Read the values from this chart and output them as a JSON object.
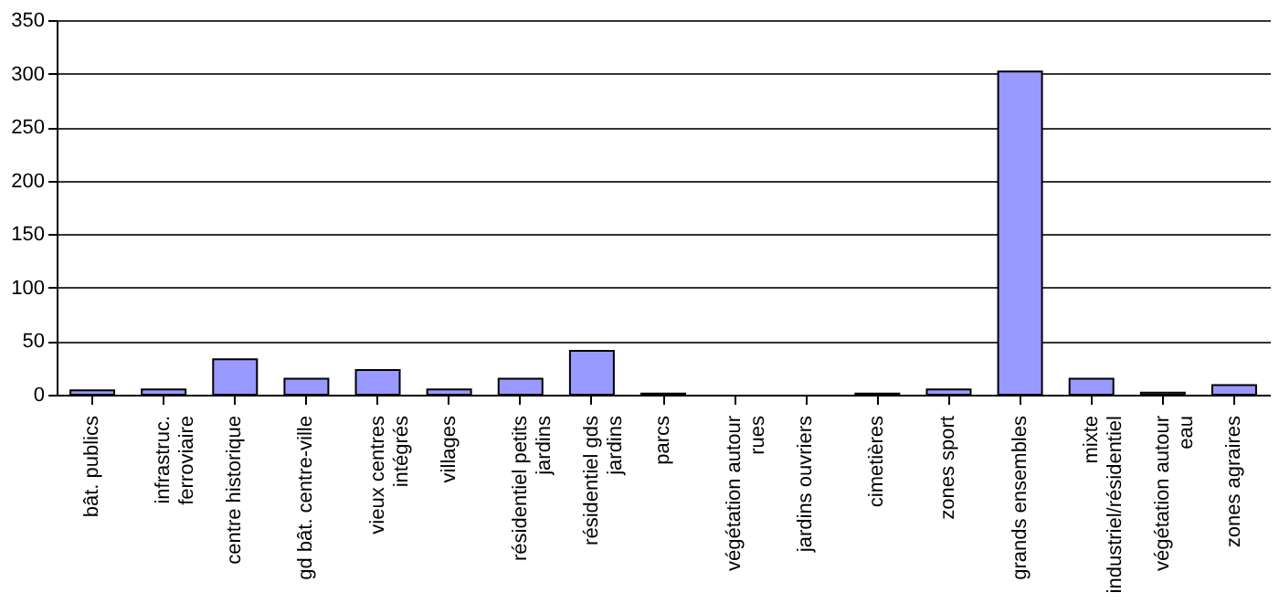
{
  "chart_data": {
    "type": "bar",
    "categories": [
      "bât. publics",
      "infrastruc. ferroviaire",
      "centre historique",
      "gd bât. centre-ville",
      "vieux centres intégrés",
      "villages",
      "résidentiel petits jardins",
      "résidentiel  gds jardins",
      "parcs",
      "végétation autour rues",
      "jardins ouvriers",
      "cimetières",
      "zones sport",
      "grands ensembles",
      "mixte industriel/résidentiel",
      "végétation autour eau",
      "zones agraires"
    ],
    "values": [
      4,
      5,
      33,
      15,
      23,
      5,
      15,
      41,
      1,
      0,
      0,
      1,
      5,
      302,
      15,
      2,
      9
    ],
    "color": "#9999ff",
    "ylim": [
      0,
      350
    ],
    "yticks": [
      0,
      50,
      100,
      150,
      200,
      250,
      300,
      350
    ],
    "grid": "y"
  }
}
